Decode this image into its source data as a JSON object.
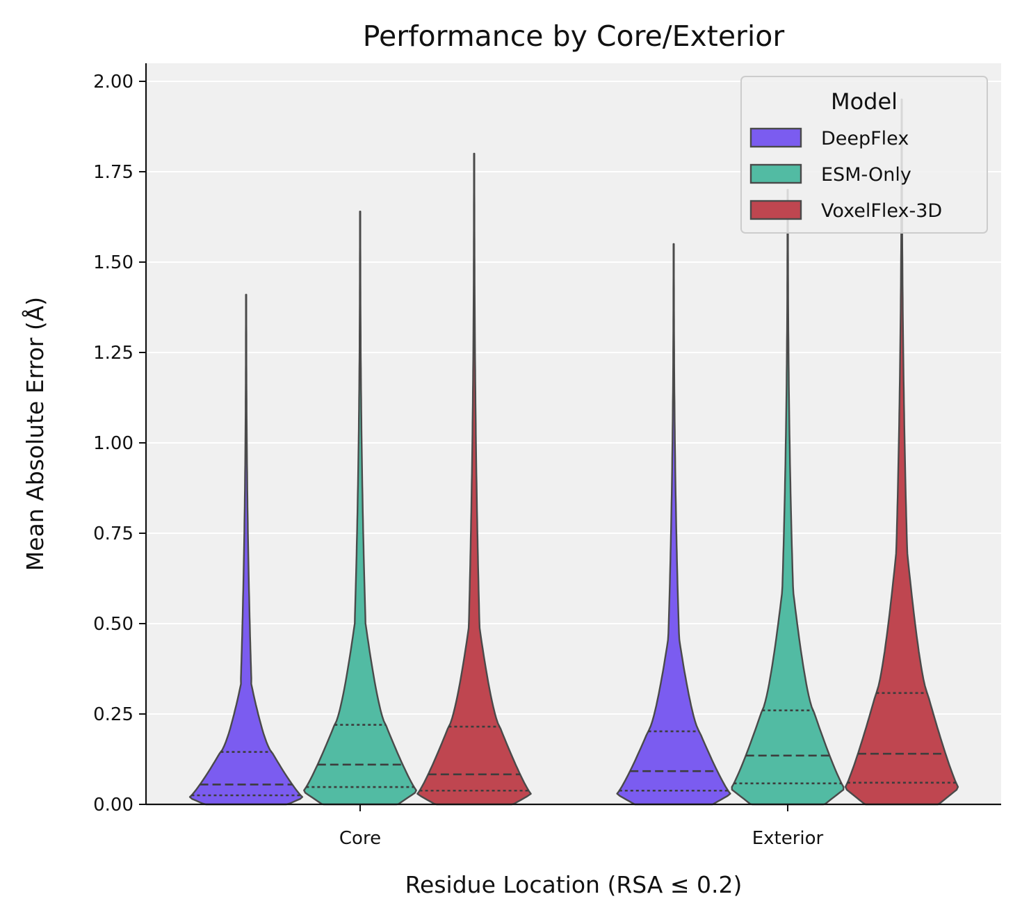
{
  "chart_data": {
    "type": "violin",
    "title": "Performance by Core/Exterior",
    "xlabel": "Residue Location (RSA ≤ 0.2)",
    "ylabel": "Mean Absolute Error (Å)",
    "categories": [
      "Core",
      "Exterior"
    ],
    "ylim": [
      0,
      2.05
    ],
    "yticks": [
      "0.00",
      "0.25",
      "0.50",
      "0.75",
      "1.00",
      "1.25",
      "1.50",
      "1.75",
      "2.00"
    ],
    "grid": "horizontal",
    "legend": {
      "title": "Model",
      "placement": "top-right"
    },
    "series": [
      {
        "name": "DeepFlex",
        "color": "#7b5cf0",
        "values": [
          {
            "category": "Core",
            "q1": 0.025,
            "median": 0.055,
            "q3": 0.145,
            "max": 1.41
          },
          {
            "category": "Exterior",
            "q1": 0.038,
            "median": 0.092,
            "q3": 0.202,
            "max": 1.55
          }
        ]
      },
      {
        "name": "ESM-Only",
        "color": "#52bba3",
        "values": [
          {
            "category": "Core",
            "q1": 0.048,
            "median": 0.11,
            "q3": 0.22,
            "max": 1.64
          },
          {
            "category": "Exterior",
            "q1": 0.058,
            "median": 0.135,
            "q3": 0.26,
            "max": 1.7
          }
        ]
      },
      {
        "name": "VoxelFlex-3D",
        "color": "#bf4650",
        "values": [
          {
            "category": "Core",
            "q1": 0.038,
            "median": 0.083,
            "q3": 0.215,
            "max": 1.8
          },
          {
            "category": "Exterior",
            "q1": 0.06,
            "median": 0.14,
            "q3": 0.308,
            "max": 1.95
          }
        ]
      }
    ]
  }
}
